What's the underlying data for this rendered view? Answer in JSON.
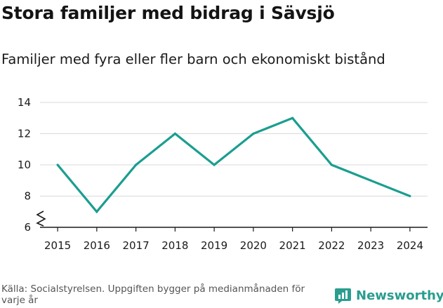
{
  "colors": {
    "line": "#1a9e8f",
    "grid": "#d9d9d9",
    "axis": "#1a1a1a",
    "brand": "#2a9d8f"
  },
  "chart_data": {
    "type": "line",
    "title": "Stora familjer med bidrag i Sävsjö",
    "subtitle": "Familjer med fyra eller fler barn och ekonomiskt bistånd",
    "xlabel": "",
    "ylabel": "",
    "x": [
      2015,
      2016,
      2017,
      2018,
      2019,
      2020,
      2021,
      2022,
      2023,
      2024
    ],
    "series": [
      {
        "name": "Familjer",
        "values": [
          10,
          7,
          10,
          12,
          10,
          12,
          13,
          10,
          9,
          8
        ]
      }
    ],
    "x_tick_labels": [
      "2015",
      "2016",
      "2017",
      "2018",
      "2019",
      "2020",
      "2021",
      "2022",
      "2023",
      "2024"
    ],
    "y_ticks": [
      6,
      8,
      10,
      12,
      14
    ],
    "y_tick_labels": [
      "6",
      "8",
      "10",
      "12",
      "14"
    ],
    "ylim": [
      6,
      14
    ],
    "xlim": [
      2014.55,
      2024.45
    ],
    "grid": true,
    "axis_break": true
  },
  "footer": {
    "source": "Källa: Socialstyrelsen. Uppgiften bygger på medianmånaden för varje år",
    "brand": "Newsworthy",
    "brand_icon": "newsworthy-logo-icon"
  }
}
